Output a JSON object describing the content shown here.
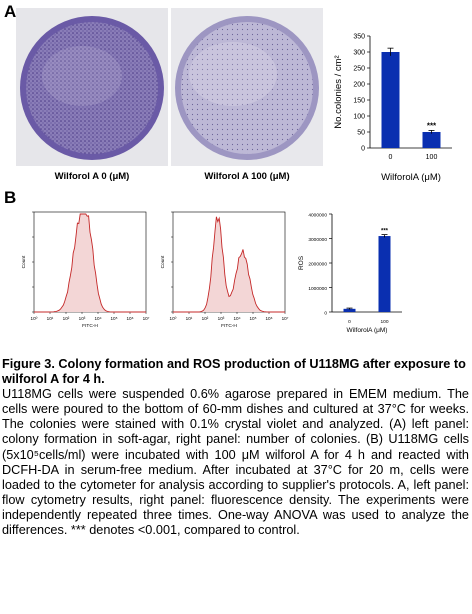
{
  "panels": {
    "a": {
      "letter": "A",
      "dish_labels": [
        "Wilforol A 0 (μM)",
        "Wilforol A 100 (μM)"
      ]
    },
    "b": {
      "letter": "B",
      "flow_axis_labels": {
        "ylabel": "Count",
        "xlabel": "FITC-H",
        "ticks": [
          "10⁰",
          "10¹",
          "10²",
          "10³",
          "10⁴",
          "10⁵",
          "10⁶",
          "10⁷"
        ]
      }
    }
  },
  "chart_data": [
    {
      "type": "bar",
      "ylabel": "No.colonies / cm²",
      "xlabel": "WilforolA (μM)",
      "categories": [
        "0",
        "100"
      ],
      "values": [
        300,
        50
      ],
      "errors": [
        12,
        5
      ],
      "ylim": [
        0,
        350
      ],
      "yticks": [
        0,
        50,
        100,
        150,
        200,
        250,
        300,
        350
      ],
      "annotations": [
        "",
        "***"
      ],
      "bar_color": "#0a2fb0"
    },
    {
      "type": "bar",
      "ylabel": "ROS",
      "xlabel": "WilforolA (μM)",
      "categories": [
        "0",
        "100"
      ],
      "values": [
        130000,
        3100000
      ],
      "errors": [
        30000,
        60000
      ],
      "ylim": [
        0,
        4000000
      ],
      "yticks": [
        0,
        1000000,
        2000000,
        3000000,
        4000000
      ],
      "annotations": [
        "",
        "***"
      ],
      "bar_color": "#0a2fb0"
    }
  ],
  "caption": {
    "title": "Figure 3. Colony formation and ROS production of U118MG after exposure to wilforol A for 4 h.",
    "body": "U118MG cells were suspended 0.6% agarose prepared in EMEM medium. The cells were poured to the bottom of 60-mm dishes and cultured at 37°C for weeks. The colonies were stained with 0.1% crystal violet and analyzed. (A) left panel: colony formation in soft-agar, right panel: number of colonies. (B) U118MG cells (5x10⁵cells/ml) were incubated with 100 μM wilforol A for 4 h and reacted with DCFH-DA in serum-free medium. After incubated at 37°C for 20 m, cells were loaded to the cytometer for analysis according to supplier's protocols. A, left panel: flow cytometry results, right panel: fluorescence density. The experiments were independently repeated three times. One-way ANOVA was used to analyze the differences. *** denotes <0.001, compared to control."
  }
}
